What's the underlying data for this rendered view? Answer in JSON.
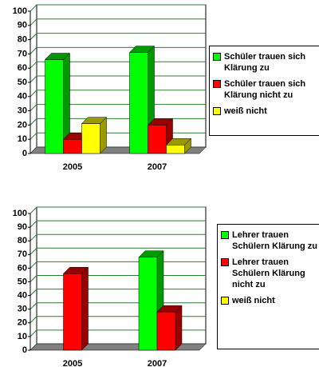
{
  "chart_data": [
    {
      "type": "bar3d",
      "categories": [
        "2005",
        "2007"
      ],
      "series": [
        {
          "name": "Schüler trauen sich Klärung zu",
          "color": "#00ff00",
          "side": "#009900",
          "values": [
            66,
            71
          ]
        },
        {
          "name": "Schüler trauen sich Klärung nicht zu",
          "color": "#ff0000",
          "side": "#990000",
          "values": [
            10,
            20
          ]
        },
        {
          "name": "weiß nicht",
          "color": "#ffff00",
          "side": "#999900",
          "values": [
            21,
            6
          ]
        }
      ],
      "ylim": [
        0,
        100
      ],
      "yticks": [
        0,
        10,
        20,
        30,
        40,
        50,
        60,
        70,
        80,
        90,
        100
      ],
      "grid": true
    },
    {
      "type": "bar3d",
      "categories": [
        "2005",
        "2007"
      ],
      "series": [
        {
          "name": "Lehrer trauen Schülern Klärung zu",
          "color": "#00ff00",
          "side": "#009900",
          "values": [
            null,
            68
          ]
        },
        {
          "name": "Lehrer trauen Schülern Klärung nicht zu",
          "color": "#ff0000",
          "side": "#990000",
          "values": [
            56,
            28
          ]
        },
        {
          "name": "weiß nicht",
          "color": "#ffff00",
          "side": "#999900",
          "values": [
            null,
            null
          ]
        }
      ],
      "ylim": [
        0,
        100
      ],
      "yticks": [
        0,
        10,
        20,
        30,
        40,
        50,
        60,
        70,
        80,
        90,
        100
      ],
      "grid": true
    }
  ]
}
